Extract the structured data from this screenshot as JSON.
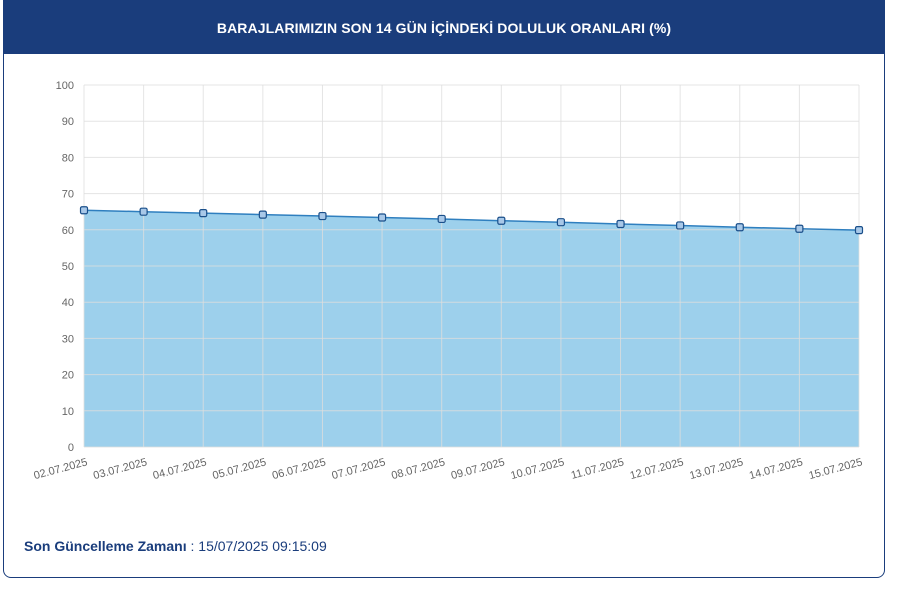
{
  "header": {
    "title": "BARAJLARIMIZIN SON 14 GÜN İÇİNDEKİ DOLULUK ORANLARI (%)"
  },
  "footer": {
    "label": "Son Güncelleme Zamanı",
    "separator": " : ",
    "value": "15/07/2025 09:15:09"
  },
  "colors": {
    "header_bg": "#1a3d7c",
    "area_fill": "#9dd0ec",
    "line": "#2f7fbf",
    "marker_fill": "#a8c8e8",
    "marker_stroke": "#1a4f8a",
    "grid": "#dddddd"
  },
  "chart_data": {
    "type": "area",
    "categories": [
      "02.07.2025",
      "03.07.2025",
      "04.07.2025",
      "05.07.2025",
      "06.07.2025",
      "07.07.2025",
      "08.07.2025",
      "09.07.2025",
      "10.07.2025",
      "11.07.2025",
      "12.07.2025",
      "13.07.2025",
      "14.07.2025",
      "15.07.2025"
    ],
    "values": [
      65.4,
      65.0,
      64.6,
      64.2,
      63.8,
      63.4,
      63.0,
      62.5,
      62.1,
      61.6,
      61.2,
      60.7,
      60.3,
      59.9
    ],
    "ylim": [
      0,
      100
    ],
    "yticks": [
      0,
      10,
      20,
      30,
      40,
      50,
      60,
      70,
      80,
      90,
      100
    ],
    "grid": true,
    "title": "",
    "xlabel": "",
    "ylabel": ""
  }
}
